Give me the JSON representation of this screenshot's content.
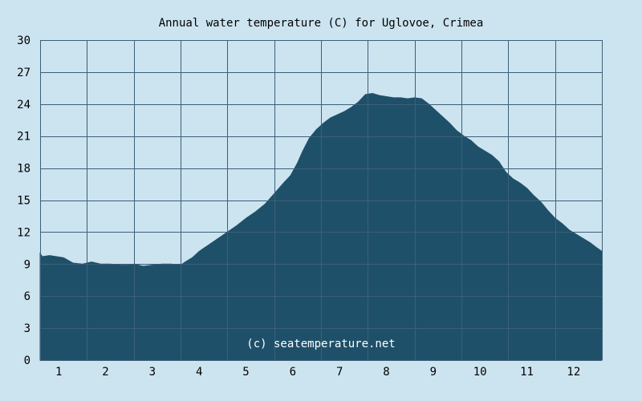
{
  "chart_data": {
    "type": "area",
    "title": "Annual water temperature (C) for Uglovoe, Crimea",
    "credit": "(c) seatemperature.net",
    "xlabel": "",
    "ylabel": "",
    "ylim": [
      0,
      30
    ],
    "xlim": [
      0.5,
      12.5
    ],
    "y_ticks": [
      0,
      3,
      6,
      9,
      12,
      15,
      18,
      21,
      24,
      27,
      30
    ],
    "x_ticks": [
      1,
      2,
      3,
      4,
      5,
      6,
      7,
      8,
      9,
      10,
      11,
      12
    ],
    "grid": true,
    "colors": {
      "background": "#cce4f0",
      "plot_background": "#cce4f0",
      "fill": "#1f5069",
      "grid": "#3d5f78"
    },
    "series": [
      {
        "x": [
          0.5,
          0.55,
          0.7,
          0.85,
          1.0,
          1.2,
          1.4,
          1.6,
          1.8,
          2.0,
          2.2,
          2.4,
          2.5,
          2.7,
          2.9,
          3.1,
          3.3,
          3.5,
          3.6,
          3.75,
          3.9,
          4.1,
          4.3,
          4.5,
          4.7,
          4.9,
          5.1,
          5.3,
          5.5,
          5.7,
          5.85,
          6.0,
          6.1,
          6.25,
          6.4,
          6.55,
          6.7,
          6.85,
          7.0,
          7.15,
          7.3,
          7.45,
          7.6,
          7.75,
          7.9,
          8.05,
          8.2,
          8.35,
          8.5,
          8.65,
          8.8,
          8.95,
          9.1,
          9.25,
          9.4,
          9.55,
          9.7,
          9.85,
          10.0,
          10.15,
          10.3,
          10.45,
          10.6,
          10.75,
          10.9,
          11.05,
          11.2,
          11.35,
          11.5,
          11.65,
          11.8,
          11.95,
          12.1,
          12.25,
          12.4,
          12.5
        ],
        "values": [
          10.0,
          9.7,
          9.8,
          9.7,
          9.6,
          9.1,
          9.0,
          9.2,
          9.0,
          9.0,
          8.9,
          8.9,
          9.0,
          8.8,
          8.9,
          9.0,
          9.0,
          8.9,
          9.2,
          9.6,
          10.2,
          10.8,
          11.4,
          12.0,
          12.6,
          13.3,
          13.9,
          14.6,
          15.6,
          16.6,
          17.3,
          18.5,
          19.5,
          20.8,
          21.6,
          22.2,
          22.7,
          23.0,
          23.3,
          23.7,
          24.2,
          24.9,
          25.0,
          24.8,
          24.7,
          24.6,
          24.6,
          24.5,
          24.6,
          24.5,
          24.0,
          23.4,
          22.8,
          22.2,
          21.5,
          21.0,
          20.6,
          20.0,
          19.6,
          19.2,
          18.6,
          17.6,
          17.0,
          16.6,
          16.1,
          15.4,
          14.8,
          14.0,
          13.3,
          12.8,
          12.2,
          11.8,
          11.4,
          11.0,
          10.5,
          10.2
        ]
      }
    ]
  }
}
